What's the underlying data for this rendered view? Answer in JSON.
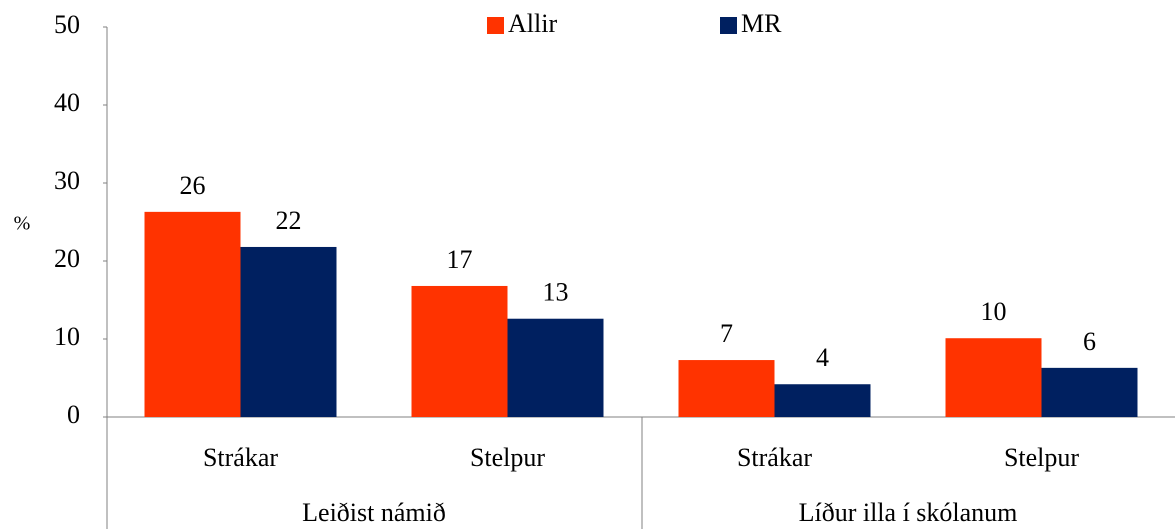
{
  "chart_data": {
    "type": "bar",
    "y_label": "%",
    "categories": [
      "Strákar",
      "Stelpur",
      "Strákar",
      "Stelpur"
    ],
    "groups": [
      "Leiðist námið",
      "Líður illa í skólanum"
    ],
    "series": [
      {
        "name": "Allir",
        "color": "#ff3300",
        "values": [
          26.3,
          16.8,
          7.3,
          10.1
        ],
        "value_labels": [
          "26",
          "17",
          "7",
          "10"
        ]
      },
      {
        "name": "MR",
        "color": "#002060",
        "values": [
          21.8,
          12.6,
          4.2,
          6.3
        ],
        "value_labels": [
          "22",
          "13",
          "4",
          "6"
        ]
      }
    ],
    "ylim": [
      0,
      50
    ],
    "yticks": [
      0,
      10,
      20,
      30,
      40,
      50
    ],
    "grid": false,
    "legend": "top"
  }
}
